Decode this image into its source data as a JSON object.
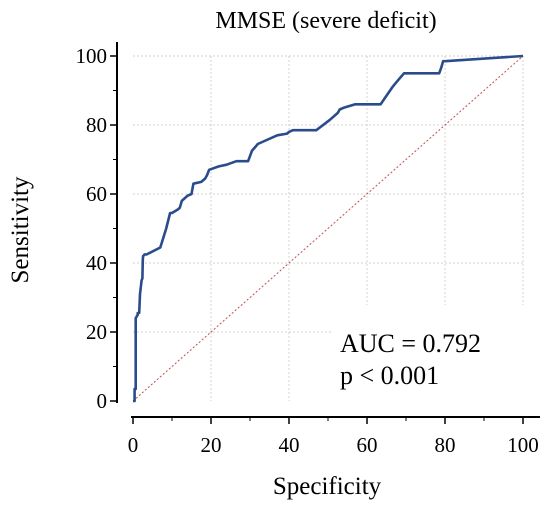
{
  "chart_data": {
    "type": "line",
    "title": "MMSE (severe deficit)",
    "xlabel": "Specificity",
    "ylabel": "Sensitivity",
    "xlim": [
      0,
      100
    ],
    "ylim": [
      0,
      100
    ],
    "x_ticks": [
      "0",
      "20",
      "40",
      "60",
      "80",
      "100"
    ],
    "y_ticks": [
      "0",
      "20",
      "40",
      "60",
      "80",
      "100"
    ],
    "grid": true,
    "series": [
      {
        "color": "#2b4c8c",
        "x": [
          0,
          0.4,
          0.4,
          0.7,
          0.7,
          1.2,
          1.2,
          1.6,
          1.8,
          2.2,
          2.4,
          2.5,
          2.6,
          3.0,
          3.5,
          7.0,
          8.5,
          9.5,
          10,
          11.5,
          12,
          12.5,
          14,
          15.0,
          15.5,
          17.5,
          18.5,
          19.0,
          19.5,
          22,
          24,
          26.5,
          29.5,
          30.5,
          32.0,
          34,
          37,
          39.5,
          40,
          41,
          47,
          50.5,
          52.5,
          53.0,
          54,
          57.0,
          63.5,
          66.5,
          68,
          69.5,
          70,
          75,
          78.5,
          79.0,
          79.5,
          80,
          100
        ],
        "y": [
          0,
          0,
          3.5,
          3.5,
          24,
          25,
          25.5,
          25.5,
          31,
          35,
          35.5,
          41,
          42,
          42.5,
          42.5,
          44.5,
          50,
          54.5,
          54.5,
          55.5,
          56,
          58,
          59.5,
          60,
          63,
          63.5,
          64.5,
          65.5,
          67,
          68,
          68.5,
          69.5,
          69.5,
          72.5,
          74.5,
          75.5,
          77,
          77.5,
          78,
          78.5,
          78.5,
          81.5,
          83.5,
          84.5,
          85,
          86,
          86,
          91,
          93,
          95,
          95,
          95,
          95,
          96.5,
          98.5,
          98.5,
          100
        ]
      }
    ],
    "reference_line": {
      "x": [
        0,
        100
      ],
      "y": [
        0,
        100
      ],
      "color": "#c05050"
    },
    "annotations": [
      "AUC = 0.792",
      "p < 0.001"
    ]
  }
}
